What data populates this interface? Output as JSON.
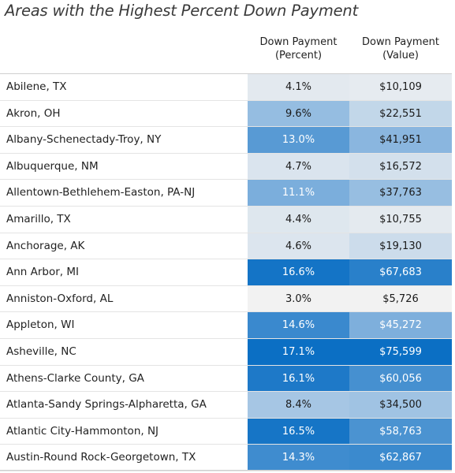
{
  "chart_data": {
    "type": "table",
    "title": "Areas with the Highest Percent Down Payment",
    "columns": [
      {
        "line1": "Down Payment",
        "line2": "(Percent)"
      },
      {
        "line1": "Down Payment",
        "line2": "(Value)"
      }
    ],
    "rows": [
      {
        "area": "Abilene, TX",
        "percent": 4.1,
        "percent_label": "4.1%",
        "value": 10109,
        "value_label": "$10,109"
      },
      {
        "area": "Akron, OH",
        "percent": 9.6,
        "percent_label": "9.6%",
        "value": 22551,
        "value_label": "$22,551"
      },
      {
        "area": "Albany-Schenectady-Troy, NY",
        "percent": 13.0,
        "percent_label": "13.0%",
        "value": 41951,
        "value_label": "$41,951"
      },
      {
        "area": "Albuquerque, NM",
        "percent": 4.7,
        "percent_label": "4.7%",
        "value": 16572,
        "value_label": "$16,572"
      },
      {
        "area": "Allentown-Bethlehem-Easton, PA-NJ",
        "percent": 11.1,
        "percent_label": "11.1%",
        "value": 37763,
        "value_label": "$37,763"
      },
      {
        "area": "Amarillo, TX",
        "percent": 4.4,
        "percent_label": "4.4%",
        "value": 10755,
        "value_label": "$10,755"
      },
      {
        "area": "Anchorage, AK",
        "percent": 4.6,
        "percent_label": "4.6%",
        "value": 19130,
        "value_label": "$19,130"
      },
      {
        "area": "Ann Arbor, MI",
        "percent": 16.6,
        "percent_label": "16.6%",
        "value": 67683,
        "value_label": "$67,683"
      },
      {
        "area": "Anniston-Oxford, AL",
        "percent": 3.0,
        "percent_label": "3.0%",
        "value": 5726,
        "value_label": "$5,726"
      },
      {
        "area": "Appleton, WI",
        "percent": 14.6,
        "percent_label": "14.6%",
        "value": 45272,
        "value_label": "$45,272"
      },
      {
        "area": "Asheville, NC",
        "percent": 17.1,
        "percent_label": "17.1%",
        "value": 75599,
        "value_label": "$75,599"
      },
      {
        "area": "Athens-Clarke County, GA",
        "percent": 16.1,
        "percent_label": "16.1%",
        "value": 60056,
        "value_label": "$60,056"
      },
      {
        "area": "Atlanta-Sandy Springs-Alpharetta, GA",
        "percent": 8.4,
        "percent_label": "8.4%",
        "value": 34500,
        "value_label": "$34,500"
      },
      {
        "area": "Atlantic City-Hammonton, NJ",
        "percent": 16.5,
        "percent_label": "16.5%",
        "value": 58763,
        "value_label": "$58,763"
      },
      {
        "area": "Austin-Round Rock-Georgetown, TX",
        "percent": 14.3,
        "percent_label": "14.3%",
        "value": 62867,
        "value_label": "$62,867"
      }
    ],
    "color_scale": {
      "low": "#f2f2f2",
      "mid": "#8fb9e0",
      "high": "#0b6fc4"
    }
  }
}
